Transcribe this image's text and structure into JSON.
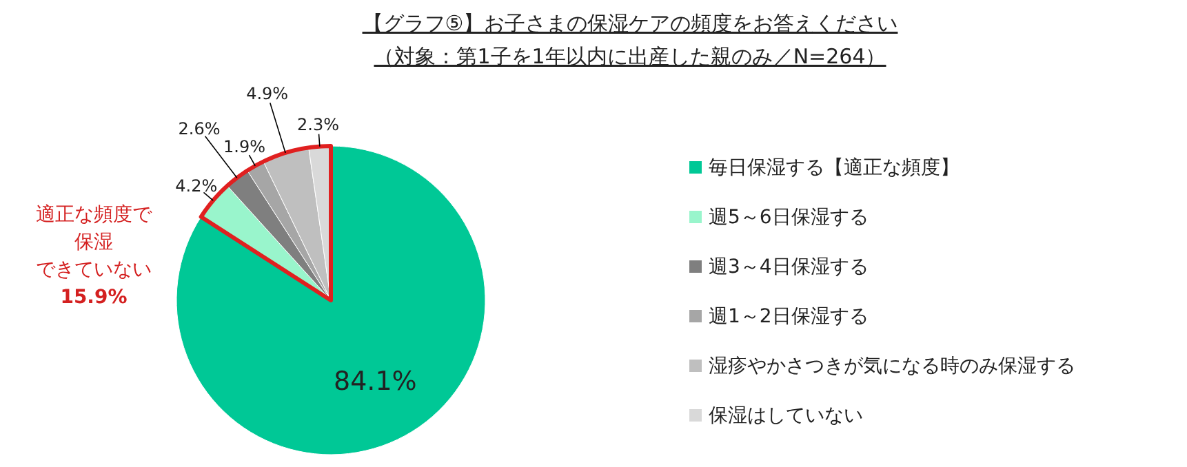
{
  "chart_data": {
    "type": "pie",
    "title": "【グラフ⑤】お子さまの保湿ケアの頻度をお答えください",
    "subtitle": "（対象：第1子を1年以内に出産した親のみ／N=264）",
    "categories": [
      "毎日保湿する【適正な頻度】",
      "週5～6日保湿する",
      "週3～4日保湿する",
      "週1～2日保湿する",
      "湿疹やかさつきが気になる時のみ保湿する",
      "保湿はしていない"
    ],
    "values": [
      84.1,
      4.2,
      2.6,
      1.9,
      4.9,
      2.3
    ],
    "colors": [
      "#00c896",
      "#99f5cc",
      "#7f7f7f",
      "#a6a6a6",
      "#bfbfbf",
      "#d9d9d9"
    ],
    "value_labels": [
      "84.1%",
      "4.2%",
      "2.6%",
      "1.9%",
      "4.9%",
      "2.3%"
    ],
    "annotations": [
      "適正な頻度で",
      "保湿",
      "できていない",
      "15.9%"
    ],
    "legend": "right"
  }
}
